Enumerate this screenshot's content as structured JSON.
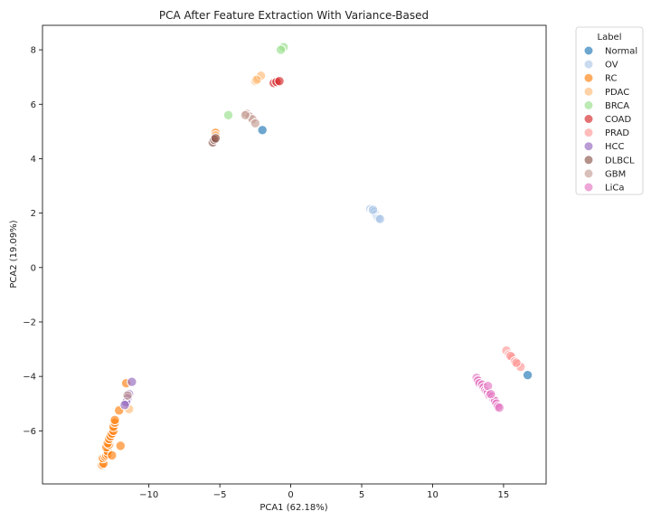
{
  "chart_data": {
    "type": "scatter",
    "title": "PCA After Feature Extraction With Variance-Based",
    "xlabel": "PCA1 (62.18%)",
    "ylabel": "PCA2 (19.09%)",
    "xlim": [
      -17.5,
      18.0
    ],
    "ylim": [
      -7.95,
      8.9
    ],
    "xticks": [
      -10,
      -5,
      0,
      5,
      10,
      15
    ],
    "yticks": [
      -6,
      -4,
      -2,
      0,
      2,
      4,
      6,
      8
    ],
    "xtick_labels": [
      "−10",
      "−5",
      "0",
      "5",
      "10",
      "15"
    ],
    "ytick_labels": [
      "−6",
      "−4",
      "−2",
      "0",
      "2",
      "4",
      "6",
      "8"
    ],
    "grid": false,
    "legend": {
      "title": "Label",
      "placement": "outside-top-right"
    },
    "series": [
      {
        "name": "Normal",
        "color": "#1f77b4",
        "points": [
          [
            -2.0,
            5.05
          ],
          [
            16.7,
            -3.95
          ]
        ]
      },
      {
        "name": "OV",
        "color": "#aec7e8",
        "points": [
          [
            5.6,
            2.15
          ],
          [
            5.75,
            2.1
          ],
          [
            5.9,
            2.05
          ],
          [
            6.0,
            1.95
          ],
          [
            6.1,
            1.85
          ],
          [
            6.2,
            1.8
          ],
          [
            6.3,
            1.78
          ],
          [
            5.8,
            2.12
          ]
        ]
      },
      {
        "name": "RC",
        "color": "#ff7f0e",
        "points": [
          [
            -13.3,
            -7.25
          ],
          [
            -13.2,
            -7.2
          ],
          [
            -13.25,
            -7.0
          ],
          [
            -13.1,
            -6.95
          ],
          [
            -13.0,
            -6.9
          ],
          [
            -12.9,
            -6.85
          ],
          [
            -12.9,
            -6.75
          ],
          [
            -13.0,
            -6.6
          ],
          [
            -12.8,
            -6.5
          ],
          [
            -12.9,
            -6.45
          ],
          [
            -12.8,
            -6.3
          ],
          [
            -12.7,
            -6.2
          ],
          [
            -12.6,
            -6.1
          ],
          [
            -12.5,
            -6.0
          ],
          [
            -12.5,
            -5.85
          ],
          [
            -12.4,
            -5.7
          ],
          [
            -12.4,
            -5.6
          ],
          [
            -12.1,
            -5.25
          ],
          [
            -12.0,
            -6.55
          ],
          [
            -12.6,
            -6.9
          ],
          [
            -11.6,
            -4.25
          ],
          [
            -5.3,
            4.95
          ]
        ]
      },
      {
        "name": "PDAC",
        "color": "#ffbb78",
        "points": [
          [
            -2.5,
            6.85
          ],
          [
            -2.3,
            6.95
          ],
          [
            -2.1,
            7.05
          ],
          [
            -2.4,
            6.9
          ],
          [
            -11.4,
            -5.2
          ],
          [
            -5.3,
            4.85
          ]
        ]
      },
      {
        "name": "BRCA",
        "color": "#98df8a",
        "points": [
          [
            -0.5,
            8.1
          ],
          [
            -0.7,
            8.0
          ],
          [
            -4.4,
            5.6
          ]
        ]
      },
      {
        "name": "COAD",
        "color": "#d62728",
        "points": [
          [
            -1.2,
            6.78
          ],
          [
            -1.0,
            6.82
          ],
          [
            -0.8,
            6.85
          ]
        ]
      },
      {
        "name": "PRAD",
        "color": "#ff9896",
        "points": [
          [
            15.2,
            -3.05
          ],
          [
            15.4,
            -3.2
          ],
          [
            15.6,
            -3.3
          ],
          [
            15.5,
            -3.25
          ],
          [
            15.8,
            -3.45
          ],
          [
            16.0,
            -3.55
          ],
          [
            16.2,
            -3.65
          ],
          [
            15.9,
            -3.5
          ]
        ]
      },
      {
        "name": "HCC",
        "color": "#9467bd",
        "points": [
          [
            -11.2,
            -4.2
          ],
          [
            -11.4,
            -4.65
          ],
          [
            -11.5,
            -4.8
          ],
          [
            -11.6,
            -4.95
          ],
          [
            -11.7,
            -5.05
          ]
        ]
      },
      {
        "name": "DLBCL",
        "color": "#8c564b",
        "points": [
          [
            -5.5,
            4.6
          ],
          [
            -5.4,
            4.7
          ],
          [
            -5.3,
            4.75
          ]
        ]
      },
      {
        "name": "GBM",
        "color": "#c49c94",
        "points": [
          [
            -3.1,
            5.65
          ],
          [
            -2.9,
            5.55
          ],
          [
            -2.7,
            5.45
          ],
          [
            -2.5,
            5.3
          ],
          [
            -3.2,
            5.6
          ],
          [
            -11.5,
            -4.7
          ]
        ]
      },
      {
        "name": "LiCa",
        "color": "#e377c2",
        "points": [
          [
            13.1,
            -4.05
          ],
          [
            13.2,
            -4.15
          ],
          [
            13.3,
            -4.25
          ],
          [
            13.5,
            -4.3
          ],
          [
            13.6,
            -4.4
          ],
          [
            13.7,
            -4.5
          ],
          [
            13.8,
            -4.55
          ],
          [
            13.9,
            -4.6
          ],
          [
            14.0,
            -4.7
          ],
          [
            14.2,
            -4.75
          ],
          [
            14.3,
            -4.85
          ],
          [
            14.4,
            -4.9
          ],
          [
            14.5,
            -5.0
          ],
          [
            14.6,
            -5.1
          ],
          [
            14.7,
            -5.15
          ],
          [
            13.9,
            -4.35
          ],
          [
            14.1,
            -4.65
          ]
        ]
      }
    ]
  }
}
